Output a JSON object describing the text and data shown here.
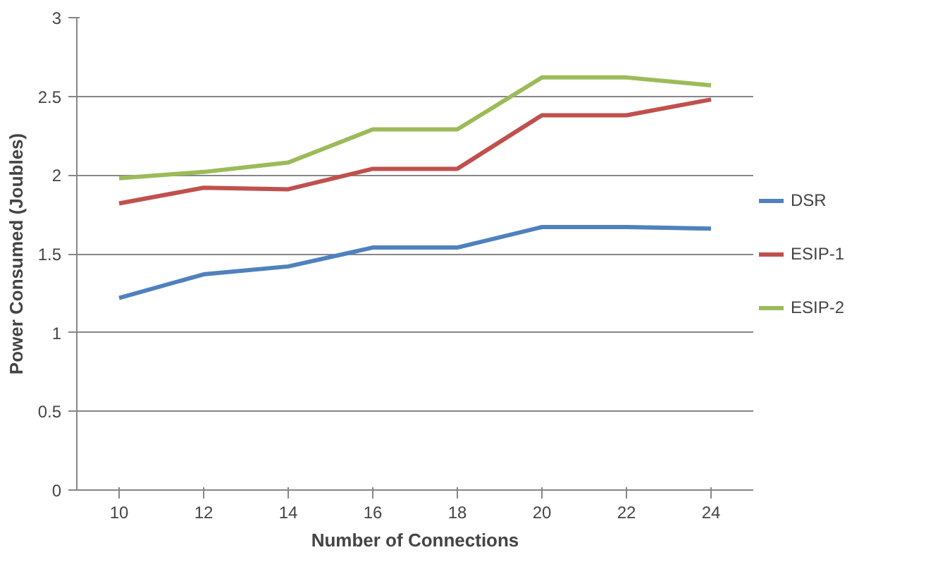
{
  "chart_data": {
    "type": "line",
    "xlabel": "Number of Connections",
    "ylabel": "Power Consumed (Joubles)",
    "categories": [
      "10",
      "12",
      "14",
      "16",
      "18",
      "20",
      "22",
      "24"
    ],
    "series": [
      {
        "name": "DSR",
        "color": "#4f81bd",
        "values": [
          1.22,
          1.37,
          1.42,
          1.54,
          1.54,
          1.67,
          1.67,
          1.66
        ]
      },
      {
        "name": "ESIP-1",
        "color": "#c0504d",
        "values": [
          1.82,
          1.92,
          1.91,
          2.04,
          2.04,
          2.38,
          2.38,
          2.48
        ]
      },
      {
        "name": "ESIP-2",
        "color": "#9bbb59",
        "values": [
          1.98,
          2.02,
          2.08,
          2.29,
          2.29,
          2.62,
          2.62,
          2.57
        ]
      }
    ],
    "ylim": [
      0,
      3
    ],
    "yticks": [
      0,
      0.5,
      1,
      1.5,
      2,
      2.5,
      3
    ],
    "grid": "y",
    "legend": "right",
    "marker": "none",
    "line_style": "solid"
  }
}
